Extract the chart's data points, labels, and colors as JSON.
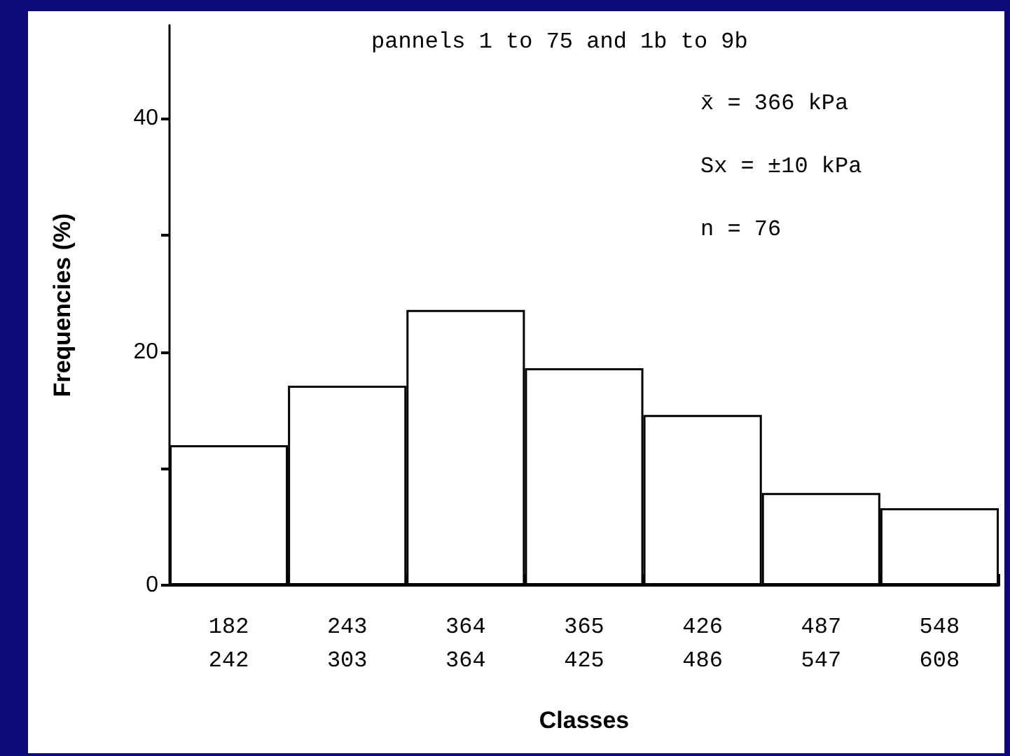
{
  "chart_data": {
    "type": "bar",
    "xlabel": "Classes",
    "ylabel": "Frequencies (%)",
    "categories": [
      "182\n242",
      "243\n303",
      "364\n364",
      "365\n425",
      "426\n486",
      "487\n547",
      "548\n608"
    ],
    "values": [
      12.0,
      17.1,
      23.6,
      18.6,
      14.6,
      7.9,
      6.6
    ],
    "color": "#ffffff",
    "ylim": [
      0,
      48
    ],
    "yticks": [
      0,
      {
        "value": 10,
        "label": null
      },
      20,
      {
        "value": 30,
        "label": null
      },
      40
    ],
    "grid": false,
    "annotations": [
      "pannels 1 to 75 and 1b to 9b",
      "x̄ = 366 kPa",
      "Sx = ±10 kPa",
      "n = 76"
    ]
  }
}
